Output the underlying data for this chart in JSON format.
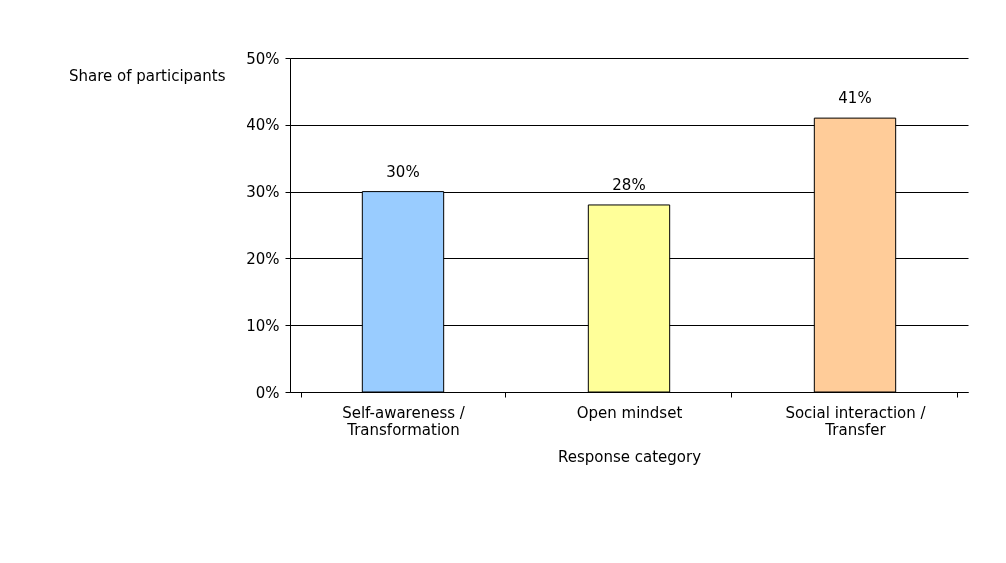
{
  "chart_data": {
    "type": "bar",
    "xlabel": "Response category",
    "ylabel": "Share of participants",
    "categories": [
      "Self-awareness / Transformation",
      "Open mindset",
      "Social interaction / Transfer"
    ],
    "values": [
      30,
      28,
      41
    ],
    "colors": [
      "#99ccff",
      "#ffff99",
      "#ffcc99"
    ],
    "value_labels": [
      "30%",
      "28%",
      "41%"
    ],
    "ylim": [
      0,
      50
    ],
    "yticks": [
      {
        "value": 0,
        "label": "0%"
      },
      {
        "value": 10,
        "label": "10%"
      },
      {
        "value": 20,
        "label": "20%"
      },
      {
        "value": 30,
        "label": "30%"
      },
      {
        "value": 40,
        "label": "40%"
      },
      {
        "value": 50,
        "label": "50%"
      }
    ],
    "grid": "y"
  }
}
